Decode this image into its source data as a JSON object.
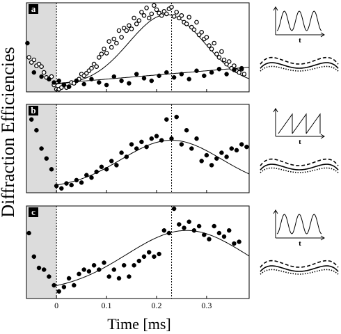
{
  "figure": {
    "ylabel": "Diffraction Efficiencies",
    "xlabel": "Time [ms]"
  },
  "chart_data": {
    "type": "scatter",
    "xlim": [
      -0.06,
      0.385
    ],
    "xticks": [
      0,
      0.1,
      0.2,
      0.3
    ],
    "xtick_labels": [
      "0",
      "0.1",
      "0.2",
      "0.3"
    ],
    "shaded_region": [
      -0.06,
      0
    ],
    "vlines": [
      0,
      0.23
    ],
    "grid": false,
    "panels": [
      {
        "label": "a",
        "ylim": [
          0,
          1
        ],
        "series": [
          {
            "marker": "open-circle",
            "x": [
              -0.055,
              -0.05,
              -0.045,
              -0.04,
              -0.035,
              -0.03,
              -0.025,
              -0.02,
              -0.015,
              -0.01,
              -0.005,
              0.0,
              0.005,
              0.01,
              0.015,
              0.02,
              0.025,
              0.03,
              0.035,
              0.04,
              0.045,
              0.05,
              0.055,
              0.06,
              0.065,
              0.07,
              0.075,
              0.08,
              0.085,
              0.09,
              0.095,
              0.1,
              0.105,
              0.11,
              0.115,
              0.12,
              0.125,
              0.13,
              0.135,
              0.14,
              0.145,
              0.15,
              0.155,
              0.16,
              0.165,
              0.17,
              0.175,
              0.18,
              0.185,
              0.19,
              0.195,
              0.2,
              0.205,
              0.21,
              0.215,
              0.22,
              0.225,
              0.23,
              0.235,
              0.24,
              0.245,
              0.25,
              0.255,
              0.26,
              0.265,
              0.27,
              0.275,
              0.28,
              0.285,
              0.29,
              0.295,
              0.3,
              0.305,
              0.31,
              0.315,
              0.32,
              0.325,
              0.33,
              0.335,
              0.34,
              0.345,
              0.35,
              0.355,
              0.36,
              0.365,
              0.37,
              0.375
            ],
            "y": [
              0.38,
              0.32,
              0.35,
              0.28,
              0.3,
              0.27,
              0.2,
              0.14,
              0.12,
              0.15,
              0.05,
              0.0,
              0.0,
              0.02,
              0.05,
              0.02,
              0.03,
              0.08,
              0.07,
              0.1,
              0.12,
              0.18,
              0.16,
              0.19,
              0.22,
              0.25,
              0.3,
              0.27,
              0.38,
              0.42,
              0.48,
              0.43,
              0.57,
              0.5,
              0.6,
              0.55,
              0.7,
              0.62,
              0.73,
              0.7,
              0.76,
              0.72,
              0.85,
              0.78,
              0.82,
              0.92,
              0.88,
              0.97,
              0.85,
              0.9,
              1.0,
              0.95,
              0.91,
              0.88,
              0.93,
              0.9,
              0.96,
              0.98,
              0.87,
              0.92,
              0.85,
              0.88,
              0.8,
              0.78,
              0.86,
              0.74,
              0.71,
              0.8,
              0.65,
              0.68,
              0.6,
              0.62,
              0.52,
              0.48,
              0.55,
              0.42,
              0.38,
              0.45,
              0.35,
              0.3,
              0.33,
              0.25,
              0.28,
              0.22,
              0.2,
              0.24,
              0.18
            ]
          },
          {
            "marker": "filled-circle",
            "x": [
              -0.058,
              -0.045,
              -0.03,
              -0.015,
              -0.005,
              0.005,
              0.015,
              0.025,
              0.04,
              0.055,
              0.07,
              0.085,
              0.1,
              0.115,
              0.13,
              0.145,
              0.16,
              0.175,
              0.19,
              0.205,
              0.22,
              0.235,
              0.25,
              0.265,
              0.28,
              0.295,
              0.31,
              0.325,
              0.34,
              0.355,
              0.37
            ],
            "y": [
              0.55,
              0.2,
              0.15,
              0.12,
              0.08,
              0.1,
              0.05,
              0.03,
              0.1,
              0.06,
              0.12,
              0.08,
              0.05,
              0.15,
              0.1,
              0.07,
              0.18,
              0.13,
              0.1,
              0.16,
              0.2,
              0.14,
              0.18,
              0.12,
              0.22,
              0.16,
              0.2,
              0.24,
              0.18,
              0.23,
              0.25
            ]
          }
        ],
        "fits": [
          {
            "kind": "gaussian",
            "baseline": 0.05,
            "amplitude": 0.84,
            "center": 0.22,
            "width": 0.075
          },
          {
            "kind": "linear",
            "x0": 0.0,
            "y0": 0.07,
            "slope": 0.5
          }
        ]
      },
      {
        "label": "b",
        "ylim": [
          0,
          1
        ],
        "series": [
          {
            "marker": "filled-circle",
            "x": [
              -0.05,
              -0.04,
              -0.03,
              -0.02,
              -0.01,
              0.0,
              0.01,
              0.02,
              0.03,
              0.04,
              0.05,
              0.06,
              0.07,
              0.08,
              0.09,
              0.1,
              0.11,
              0.12,
              0.13,
              0.14,
              0.15,
              0.16,
              0.17,
              0.18,
              0.19,
              0.2,
              0.21,
              0.22,
              0.23,
              0.24,
              0.25,
              0.26,
              0.27,
              0.28,
              0.29,
              0.3,
              0.31,
              0.32,
              0.33,
              0.34,
              0.35,
              0.36,
              0.37,
              0.38
            ],
            "y": [
              0.85,
              0.72,
              0.5,
              0.38,
              0.25,
              0.05,
              0.02,
              0.08,
              0.06,
              0.12,
              0.09,
              0.18,
              0.15,
              0.22,
              0.28,
              0.25,
              0.35,
              0.3,
              0.45,
              0.4,
              0.55,
              0.5,
              0.58,
              0.52,
              0.62,
              0.65,
              0.6,
              0.85,
              0.62,
              0.88,
              0.55,
              0.72,
              0.5,
              0.62,
              0.35,
              0.42,
              0.3,
              0.38,
              0.45,
              0.4,
              0.5,
              0.48,
              0.55,
              0.52
            ]
          }
        ],
        "fits": [
          {
            "kind": "gaussian",
            "baseline": 0.02,
            "amplitude": 0.58,
            "center": 0.23,
            "width": 0.1
          }
        ]
      },
      {
        "label": "c",
        "ylim": [
          0,
          1
        ],
        "series": [
          {
            "marker": "filled-circle",
            "x": [
              -0.055,
              -0.045,
              -0.035,
              -0.025,
              -0.015,
              -0.005,
              0.005,
              0.015,
              0.025,
              0.035,
              0.045,
              0.055,
              0.065,
              0.075,
              0.085,
              0.095,
              0.105,
              0.115,
              0.125,
              0.135,
              0.145,
              0.155,
              0.165,
              0.175,
              0.185,
              0.195,
              0.205,
              0.215,
              0.225,
              0.235,
              0.245,
              0.255,
              0.265,
              0.275,
              0.285,
              0.295,
              0.305,
              0.315,
              0.325,
              0.335,
              0.345,
              0.355,
              0.365
            ],
            "y": [
              0.72,
              0.45,
              0.32,
              0.3,
              0.22,
              0.12,
              0.05,
              0.1,
              0.2,
              0.12,
              0.25,
              0.3,
              0.28,
              0.35,
              0.3,
              0.38,
              0.22,
              0.3,
              0.2,
              0.35,
              0.22,
              0.35,
              0.4,
              0.45,
              0.5,
              0.45,
              0.48,
              0.75,
              0.72,
              1.0,
              0.82,
              0.78,
              0.85,
              0.75,
              0.8,
              0.7,
              0.65,
              0.8,
              0.72,
              0.68,
              0.75,
              0.6,
              0.62
            ]
          }
        ],
        "fits": [
          {
            "kind": "gaussian",
            "baseline": 0.05,
            "amplitude": 0.7,
            "center": 0.26,
            "width": 0.12
          }
        ]
      }
    ],
    "insets": [
      {
        "panel": "a",
        "waveform": "sine",
        "axis_label": "t"
      },
      {
        "panel": "b",
        "waveform": "sawtooth",
        "axis_label": "t"
      },
      {
        "panel": "c",
        "waveform": "sine",
        "axis_label": "t"
      }
    ]
  }
}
